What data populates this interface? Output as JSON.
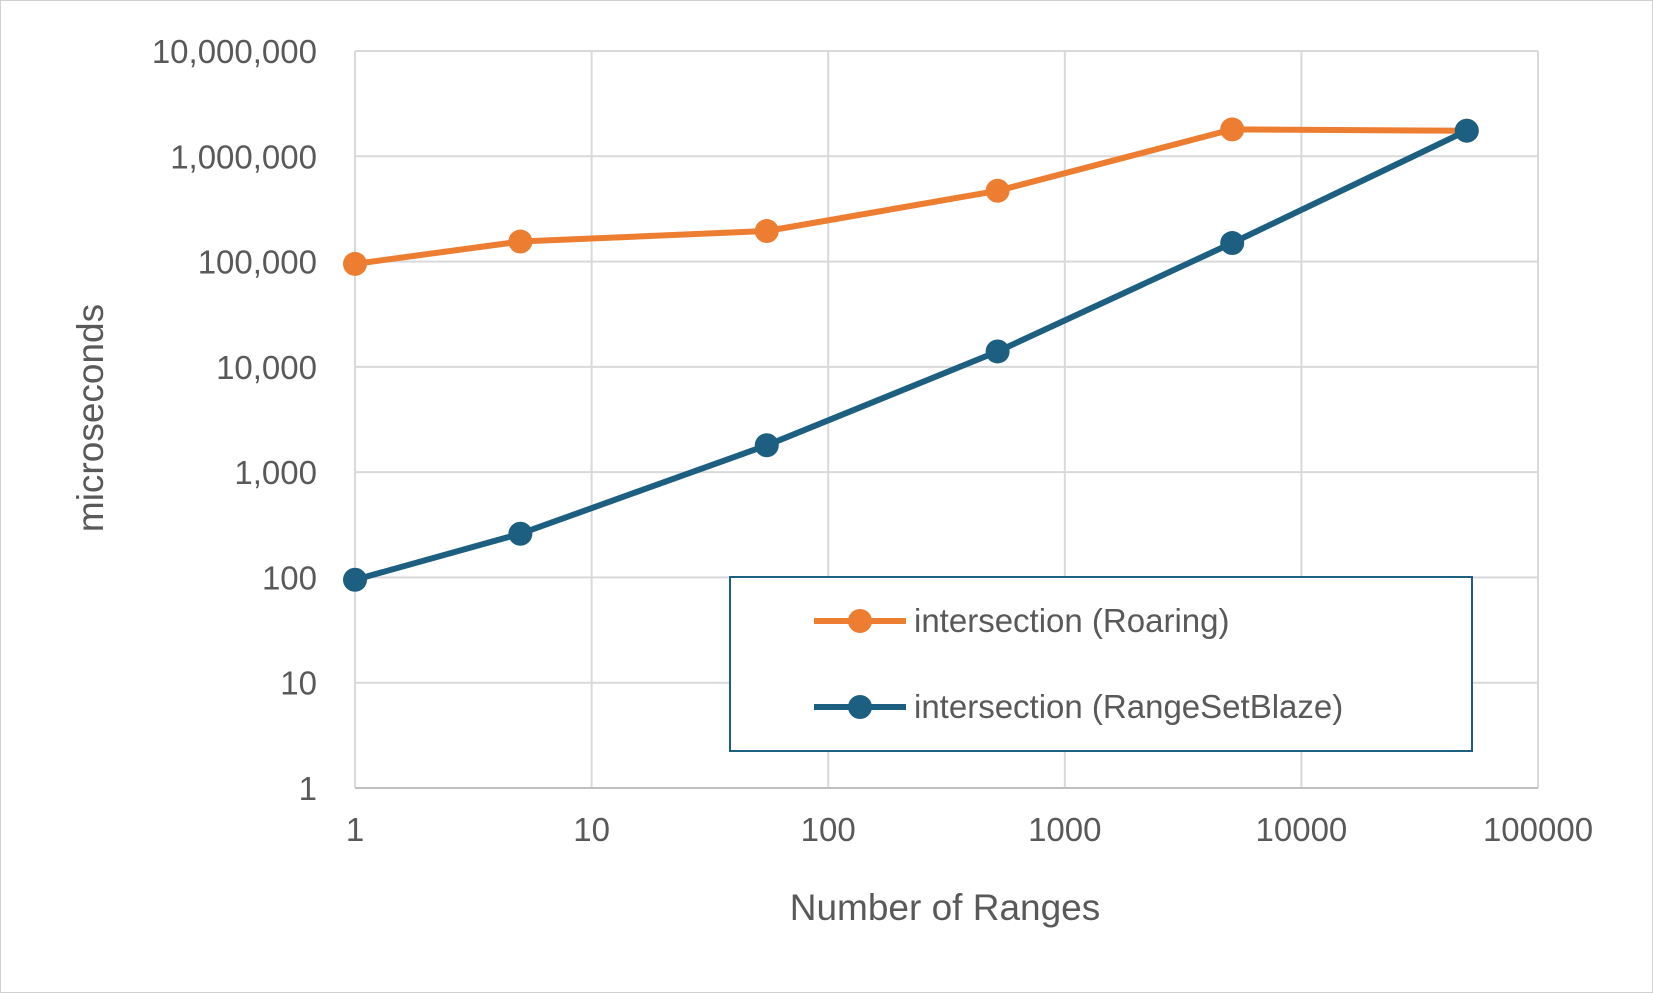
{
  "chart_data": {
    "type": "line",
    "title": "",
    "xlabel": "Number of Ranges",
    "ylabel": "microseconds",
    "x_scale": "log",
    "y_scale": "log",
    "xlim": [
      1,
      100000
    ],
    "ylim": [
      1,
      10000000
    ],
    "x_ticks": [
      "1",
      "10",
      "100",
      "1000",
      "10000",
      "100000"
    ],
    "y_ticks": [
      "1",
      "10",
      "100",
      "1,000",
      "10,000",
      "100,000",
      "1,000,000",
      "10,000,000"
    ],
    "grid": true,
    "legend_position": "inside-bottom-right",
    "x": [
      1,
      5,
      55,
      520,
      5100,
      50000
    ],
    "series": [
      {
        "name": "intersection (Roaring)",
        "color": "#ED7D31",
        "values": [
          95000,
          155000,
          195000,
          470000,
          1800000,
          1750000
        ]
      },
      {
        "name": "intersection (RangeSetBlaze)",
        "color": "#1C5F80",
        "values": [
          95,
          260,
          1800,
          14000,
          150000,
          1750000
        ]
      }
    ]
  }
}
